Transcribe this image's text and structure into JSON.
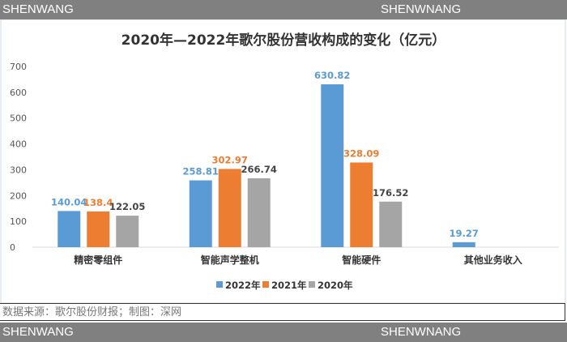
{
  "watermark": {
    "left": "SHENWANG",
    "right": "SHENWNANG"
  },
  "source": "数据来源：歌尔股份财报；制图：深网",
  "chart_data": {
    "type": "bar",
    "title": "2020年—2022年歌尔股份营收构成的变化（亿元）",
    "categories": [
      "精密零组件",
      "智能声学整机",
      "智能硬件",
      "其他业务收入"
    ],
    "series": [
      {
        "name": "2022年",
        "color": "#5b9bd5",
        "values": [
          140.04,
          258.81,
          630.82,
          19.27
        ]
      },
      {
        "name": "2021年",
        "color": "#ed7d31",
        "values": [
          138.4,
          302.97,
          328.09,
          null
        ]
      },
      {
        "name": "2020年",
        "color": "#a5a5a5",
        "values": [
          122.05,
          266.74,
          176.52,
          null
        ]
      }
    ],
    "labels": [
      [
        "140.04",
        "258.81",
        "630.82",
        "19.27"
      ],
      [
        "138.4",
        "302.97",
        "328.09",
        ""
      ],
      [
        "122.05",
        "266.74",
        "176.52",
        ""
      ]
    ],
    "ylim": [
      0,
      700
    ],
    "yticks": [
      0,
      100,
      200,
      300,
      400,
      500,
      600,
      700
    ],
    "grid": false,
    "legend": "bottom"
  }
}
